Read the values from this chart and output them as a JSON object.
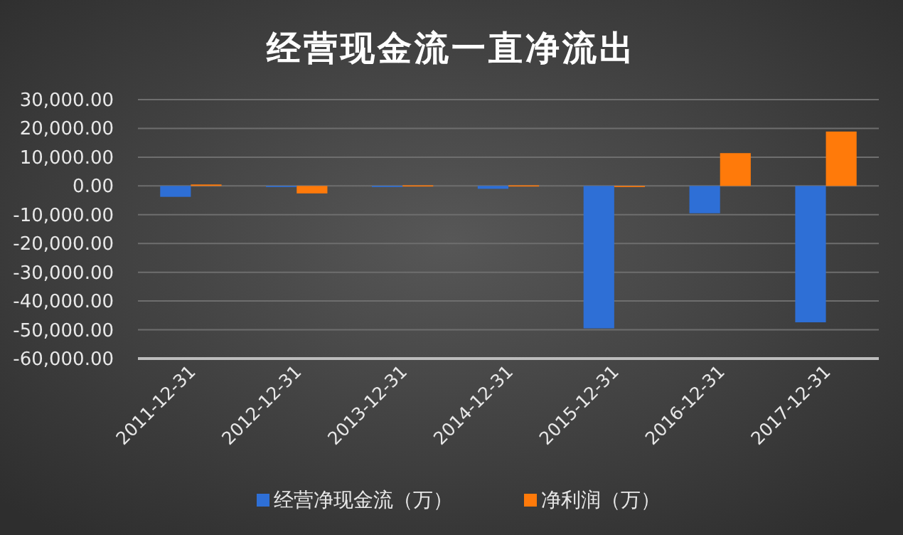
{
  "chart_data": {
    "type": "bar",
    "title": "经营现金流一直净流出",
    "categories": [
      "2011-12-31",
      "2012-12-31",
      "2013-12-31",
      "2014-12-31",
      "2015-12-31",
      "2016-12-31",
      "2017-12-31"
    ],
    "series": [
      {
        "name": "经营净现金流（万）",
        "color": "#2e6fd6",
        "values": [
          -3800,
          -200,
          -200,
          -1000,
          -49500,
          -9500,
          -47400
        ]
      },
      {
        "name": "净利润（万）",
        "color": "#ff7a0a",
        "values": [
          500,
          -2600,
          200,
          200,
          -300,
          11400,
          18900
        ]
      }
    ],
    "ylim": [
      -60000,
      30000
    ],
    "yticks": [
      {
        "value": 30000,
        "label": "30,000.00"
      },
      {
        "value": 20000,
        "label": "20,000.00"
      },
      {
        "value": 10000,
        "label": "10,000.00"
      },
      {
        "value": 0,
        "label": "0.00"
      },
      {
        "value": -10000,
        "label": "-10,000.00"
      },
      {
        "value": -20000,
        "label": "-20,000.00"
      },
      {
        "value": -30000,
        "label": "-30,000.00"
      },
      {
        "value": -40000,
        "label": "-40,000.00"
      },
      {
        "value": -50000,
        "label": "-50,000.00"
      },
      {
        "value": -60000,
        "label": "-60,000.00"
      }
    ],
    "grid": "y",
    "legend": "bottom"
  }
}
